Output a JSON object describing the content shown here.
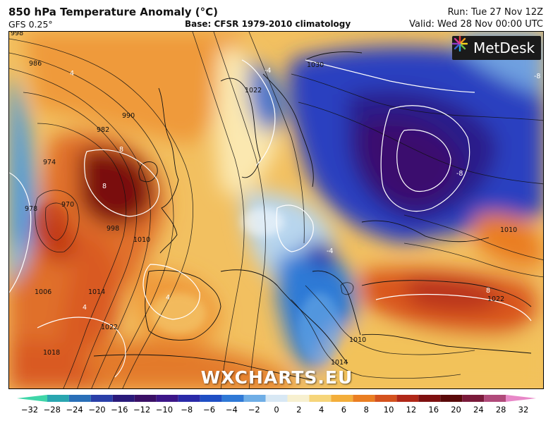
{
  "header": {
    "title": "850 hPa Temperature Anomaly (°C)",
    "model": "GFS 0.25°",
    "base": "Base: CFSR 1979-2010 climatology",
    "run": "Run: Tue 27 Nov 12Z",
    "valid": "Valid: Wed 28 Nov 00:00 UTC"
  },
  "logo": {
    "text": "MetDesk",
    "icon": "metdesk-burst-icon"
  },
  "watermark": "WXCHARTS.EU",
  "isobar_labels": [
    "998",
    "986",
    "990",
    "982",
    "974",
    "970",
    "978",
    "998",
    "1010",
    "1006",
    "1014",
    "1022",
    "1018",
    "1022",
    "1030",
    "1010",
    "1014",
    "1010",
    "1022"
  ],
  "contour_labels": [
    "4",
    "-4",
    "8",
    "8",
    "-8",
    "-8",
    "4",
    "4",
    "-4",
    "8"
  ],
  "colorbar": {
    "ticks": [
      "−32",
      "−28",
      "−24",
      "−20",
      "−16",
      "−12",
      "−10",
      "−8",
      "−6",
      "−4",
      "−2",
      "0",
      "2",
      "4",
      "6",
      "8",
      "10",
      "12",
      "16",
      "20",
      "24",
      "28",
      "32"
    ],
    "colors": [
      "#3fd6a8",
      "#2aa6b0",
      "#2a6fb8",
      "#2a3fa8",
      "#2a1a7a",
      "#3a1066",
      "#3c1688",
      "#2a2aa8",
      "#1f4fc4",
      "#2f79d6",
      "#6faee6",
      "#d8e8f4",
      "#f7f0d0",
      "#f6d57a",
      "#f3ae3a",
      "#ea7e22",
      "#d4521e",
      "#b02818",
      "#7e1010",
      "#5a0a0a",
      "#7a1a3a",
      "#b04a7a",
      "#e888c8"
    ]
  }
}
